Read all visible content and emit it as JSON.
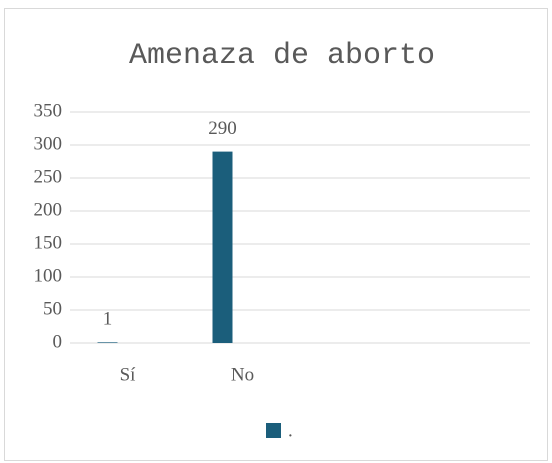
{
  "chart_data": {
    "type": "bar",
    "title": "Amenaza de aborto",
    "categories": [
      "Sí",
      "No"
    ],
    "series": [
      {
        "name": ".",
        "color": "#1b5e7b",
        "values": [
          1,
          290
        ]
      }
    ],
    "ylim": [
      0,
      350
    ],
    "yticks": [
      0,
      50,
      100,
      150,
      200,
      250,
      300,
      350
    ],
    "grid": true,
    "legend": "bottom"
  }
}
